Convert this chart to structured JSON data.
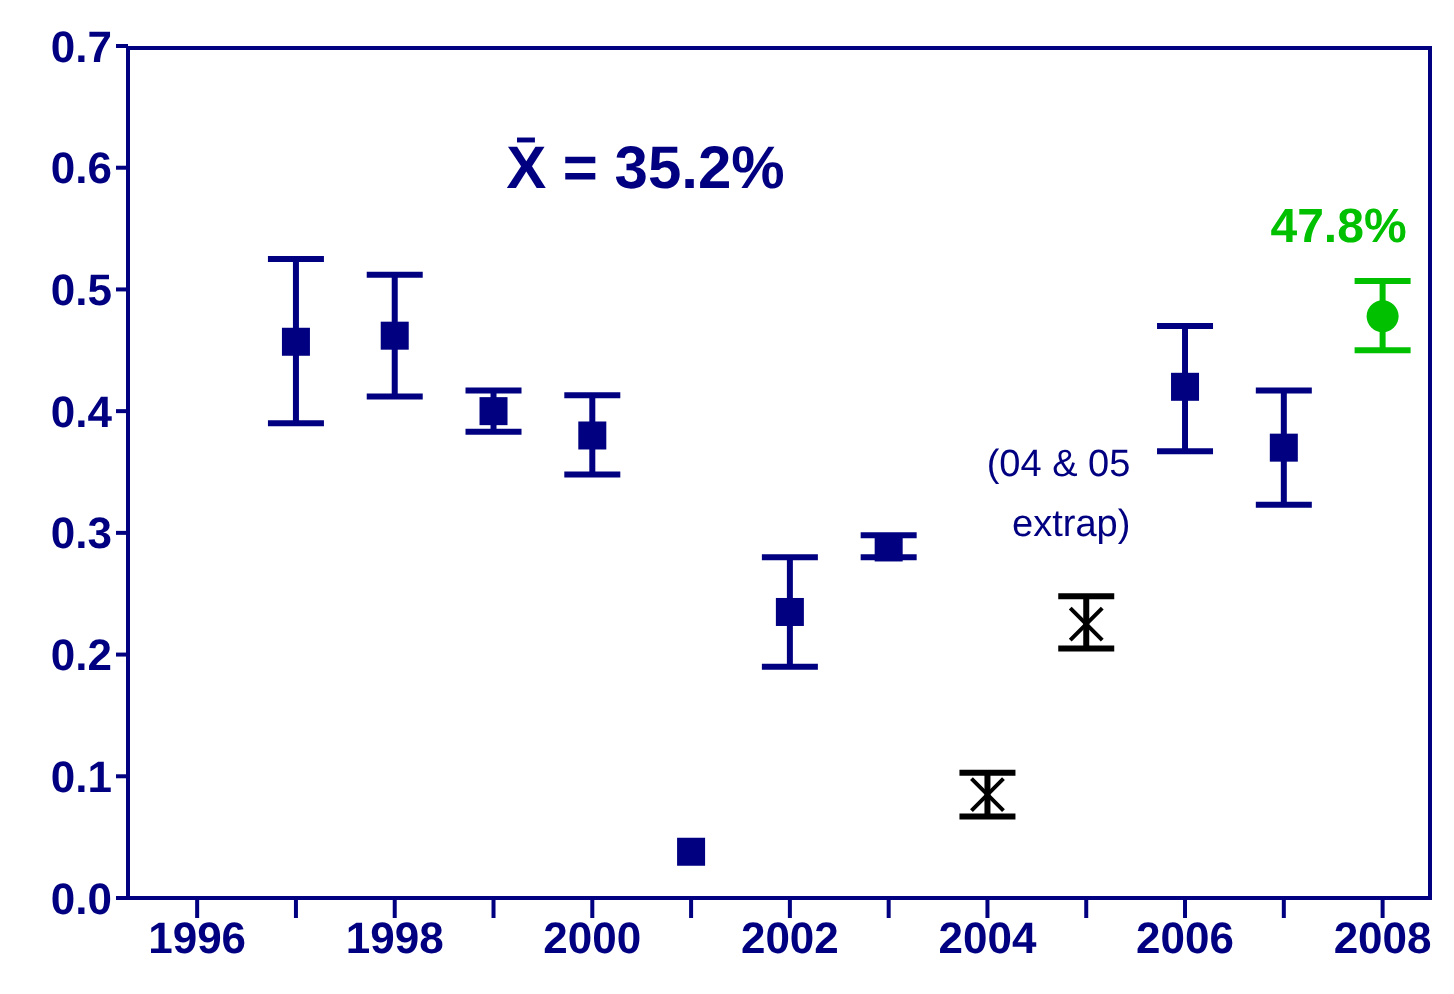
{
  "chart_data": {
    "type": "scatter",
    "xlim": [
      1995.3,
      2008.5
    ],
    "xticks": [
      1996,
      {
        "value": 1997,
        "label": null
      },
      1998,
      {
        "value": 1999,
        "label": null
      },
      2000,
      {
        "value": 2001,
        "label": null
      },
      2002,
      {
        "value": 2003,
        "label": null
      },
      2004,
      {
        "value": 2005,
        "label": null
      },
      2006,
      {
        "value": 2007,
        "label": null
      },
      2008
    ],
    "ylim": [
      0,
      0.7
    ],
    "yticks": [
      {
        "value": 0,
        "label": "0.0"
      },
      0.1,
      0.2,
      0.3,
      0.4,
      0.5,
      0.6,
      0.7
    ],
    "series": [
      {
        "color": "#000080",
        "marker": "square",
        "x": [
          1997,
          1998,
          1999,
          2000,
          2001,
          2002,
          2003,
          2006,
          2007
        ],
        "values": [
          0.457,
          0.462,
          0.4,
          0.38,
          0.038,
          0.235,
          0.288,
          0.42,
          0.37
        ],
        "errors": [
          [
            0.39,
            0.525
          ],
          [
            0.412,
            0.512
          ],
          [
            0.383,
            0.417
          ],
          [
            0.348,
            0.413
          ],
          null,
          [
            0.19,
            0.28
          ],
          [
            0.28,
            0.298
          ],
          [
            0.367,
            0.47
          ],
          [
            0.323,
            0.417
          ]
        ]
      },
      {
        "color": "#000000",
        "marker": "cross",
        "x": [
          2004,
          2005
        ],
        "values": [
          0.085,
          0.225
        ],
        "errors": [
          [
            0.067,
            0.103
          ],
          [
            0.205,
            0.248
          ]
        ]
      },
      {
        "color": "#00c000",
        "marker": "circle",
        "x": [
          2008
        ],
        "values": [
          0.478
        ],
        "errors": [
          [
            0.45,
            0.507
          ]
        ],
        "value_labels": [
          "47.8%"
        ]
      }
    ],
    "annotations": [
      "X̄ = 35.2%",
      "(04 & 05 extrap)"
    ]
  }
}
